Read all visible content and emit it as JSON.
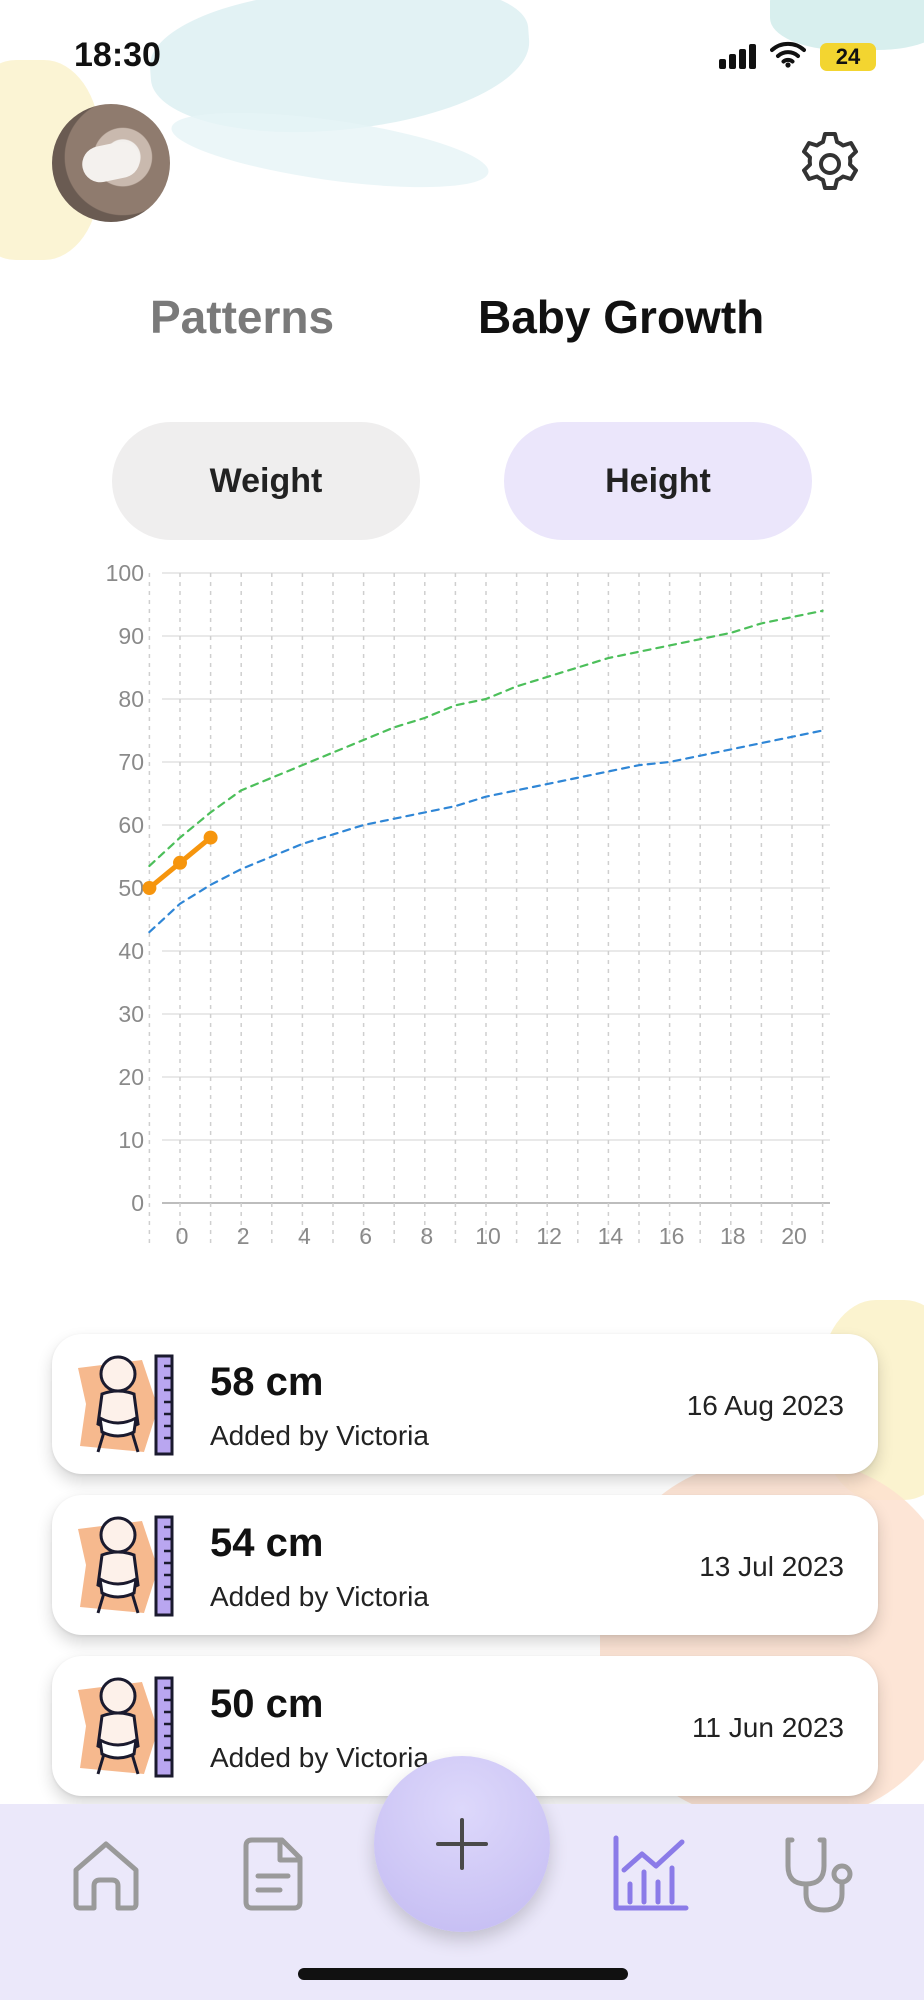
{
  "status_bar": {
    "time": "18:30",
    "battery": "24"
  },
  "header": {
    "avatar": "baby-photo",
    "settings_icon": "gear-icon"
  },
  "tabs": [
    {
      "label": "Patterns",
      "active": false
    },
    {
      "label": "Baby Growth",
      "active": true
    }
  ],
  "toggle": {
    "weight_label": "Weight",
    "height_label": "Height",
    "selected": "Height"
  },
  "chart_data": {
    "type": "line",
    "title": "",
    "xlabel": "",
    "ylabel": "",
    "xlim": [
      -1,
      22
    ],
    "ylim": [
      0,
      100
    ],
    "x_ticks": [
      "0",
      "2",
      "4",
      "6",
      "8",
      "10",
      "12",
      "14",
      "16",
      "18",
      "20"
    ],
    "y_ticks": [
      "0",
      "10",
      "20",
      "30",
      "40",
      "50",
      "60",
      "70",
      "80",
      "90",
      "100"
    ],
    "grid": true,
    "series": [
      {
        "color": "#4cbf5a",
        "style": "dashed",
        "x": [
          -1,
          0,
          1,
          2,
          3,
          4,
          5,
          6,
          7,
          8,
          9,
          10,
          11,
          12,
          13,
          14,
          15,
          16,
          17,
          18,
          19,
          20,
          21
        ],
        "y": [
          53.5,
          58,
          62,
          65.5,
          67.5,
          69.5,
          71.5,
          73.5,
          75.5,
          77,
          79,
          80,
          82,
          83.5,
          85,
          86.5,
          87.5,
          88.5,
          89.5,
          90.5,
          92,
          93,
          94
        ]
      },
      {
        "color": "#2f86d6",
        "style": "dashed",
        "x": [
          -1,
          0,
          1,
          2,
          3,
          4,
          5,
          6,
          7,
          8,
          9,
          10,
          11,
          12,
          13,
          14,
          15,
          16,
          17,
          18,
          19,
          20,
          21
        ],
        "y": [
          43,
          47.5,
          50.5,
          53,
          55,
          57,
          58.5,
          60,
          61,
          62,
          63,
          64.5,
          65.5,
          66.5,
          67.5,
          68.5,
          69.5,
          70,
          71,
          72,
          73,
          74,
          75
        ]
      },
      {
        "color": "#f6950d",
        "style": "solid",
        "x": [
          -1,
          0,
          1
        ],
        "y": [
          50,
          54,
          58
        ]
      }
    ]
  },
  "entries": [
    {
      "value": "58 cm",
      "added_by": "Added by Victoria",
      "date": "16 Aug 2023",
      "icon": "baby-height-icon"
    },
    {
      "value": "54 cm",
      "added_by": "Added by Victoria",
      "date": "13 Jul 2023",
      "icon": "baby-height-icon"
    },
    {
      "value": "50 cm",
      "added_by": "Added by Victoria",
      "date": "11 Jun 2023",
      "icon": "baby-height-icon"
    }
  ],
  "nav": [
    {
      "icon": "home-icon",
      "active": false
    },
    {
      "icon": "document-icon",
      "active": false
    },
    {
      "icon": "plus-icon",
      "active": false
    },
    {
      "icon": "chart-icon",
      "active": true
    },
    {
      "icon": "stethoscope-icon",
      "active": false
    }
  ],
  "colors": {
    "accent": "#8b7be8",
    "nav_bg": "#ebe8fa",
    "height_pill": "#ebe6fb",
    "weight_pill": "#efeeee"
  }
}
